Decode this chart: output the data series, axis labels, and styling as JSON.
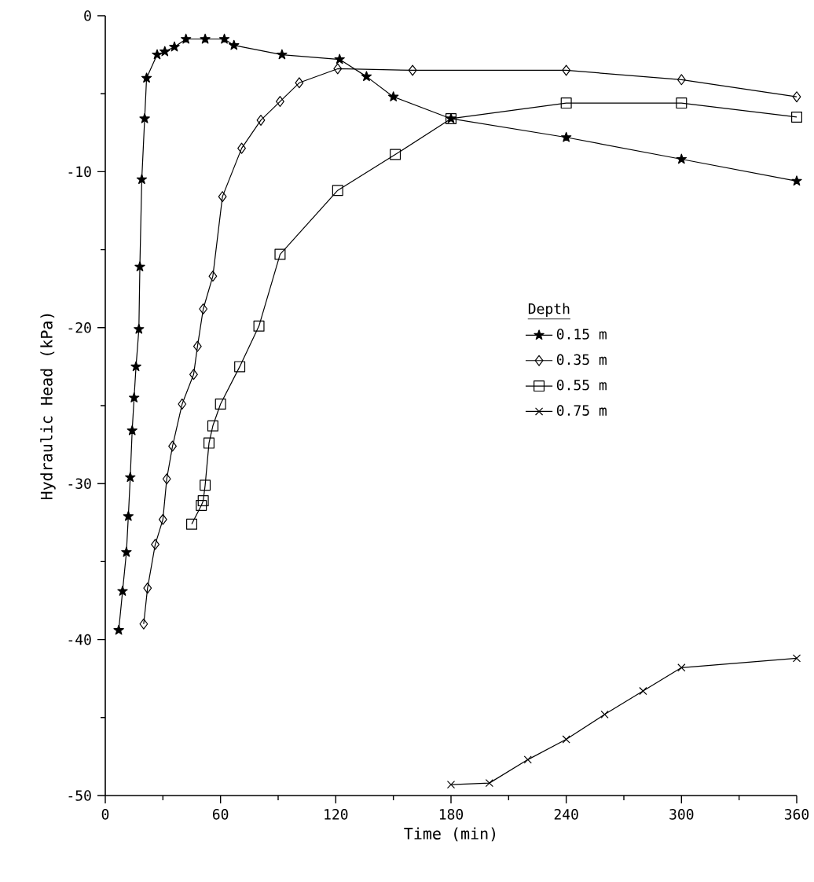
{
  "chart_data": {
    "type": "line",
    "xlabel": "Time (min)",
    "ylabel": "Hydraulic Head (kPa)",
    "legend_title": "Depth",
    "legend": "right",
    "xlim": [
      0,
      360
    ],
    "ylim": [
      -50,
      0
    ],
    "xticks": [
      0,
      60,
      120,
      180,
      240,
      300,
      360
    ],
    "yticks": [
      -50,
      -40,
      -30,
      -20,
      -10,
      0
    ],
    "series": [
      {
        "name": "0.15 m",
        "color": "#000000",
        "marker": "star",
        "x": [
          7,
          9,
          11,
          12,
          13,
          14,
          15,
          16,
          17.5,
          18,
          19,
          20.5,
          21.5,
          27,
          31,
          36,
          42,
          52,
          62,
          67,
          92,
          122,
          136,
          150,
          180,
          240,
          300,
          360
        ],
        "values": [
          -39.4,
          -36.9,
          -34.4,
          -32.1,
          -29.6,
          -26.6,
          -24.5,
          -22.5,
          -20.1,
          -16.1,
          -10.5,
          -6.6,
          -4.0,
          -2.5,
          -2.3,
          -2.0,
          -1.5,
          -1.5,
          -1.5,
          -1.9,
          -2.5,
          -2.8,
          -3.9,
          -5.2,
          -6.6,
          -7.8,
          -9.2,
          -10.6
        ]
      },
      {
        "name": "0.35 m",
        "color": "#000000",
        "marker": "diamond",
        "x": [
          20,
          22,
          26,
          30,
          32,
          35,
          40,
          46,
          48,
          51,
          56,
          61,
          71,
          81,
          91,
          101,
          121,
          160,
          240,
          300,
          360
        ],
        "values": [
          -39.0,
          -36.7,
          -33.9,
          -32.3,
          -29.7,
          -27.6,
          -24.9,
          -23.0,
          -21.2,
          -18.8,
          -16.7,
          -11.6,
          -8.5,
          -6.7,
          -5.5,
          -4.3,
          -3.4,
          -3.5,
          -3.5,
          -4.1,
          -5.2
        ]
      },
      {
        "name": "0.55 m",
        "color": "#000000",
        "marker": "square",
        "x": [
          45,
          50,
          51,
          52,
          54,
          56,
          60,
          70,
          80,
          91,
          121,
          151,
          180,
          240,
          300,
          360
        ],
        "values": [
          -32.6,
          -31.4,
          -31.1,
          -30.1,
          -27.4,
          -26.3,
          -24.9,
          -22.5,
          -19.9,
          -15.3,
          -11.2,
          -8.9,
          -6.6,
          -5.6,
          -5.6,
          -6.5
        ]
      },
      {
        "name": "0.75 m",
        "color": "#000000",
        "marker": "cross",
        "x": [
          180,
          200,
          220,
          240,
          260,
          280,
          300,
          360
        ],
        "values": [
          -49.3,
          -49.2,
          -47.7,
          -46.4,
          -44.8,
          -43.3,
          -41.8,
          -41.2
        ]
      }
    ]
  }
}
